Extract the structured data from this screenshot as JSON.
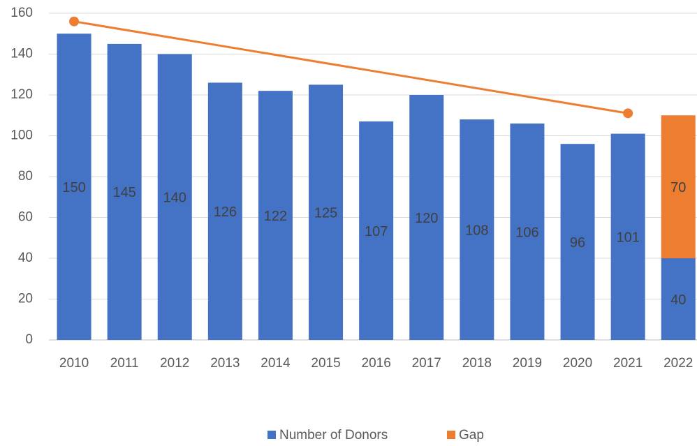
{
  "chart_data": {
    "type": "bar",
    "stacked": true,
    "categories": [
      "2010",
      "2011",
      "2012",
      "2013",
      "2014",
      "2015",
      "2016",
      "2017",
      "2018",
      "2019",
      "2020",
      "2021",
      "2022"
    ],
    "series": [
      {
        "name": "Number of Donors",
        "color": "#4472c4",
        "values": [
          150,
          145,
          140,
          126,
          122,
          125,
          107,
          120,
          108,
          106,
          96,
          101,
          40
        ]
      },
      {
        "name": "Gap",
        "color": "#ed7d31",
        "values": [
          null,
          null,
          null,
          null,
          null,
          null,
          null,
          null,
          null,
          null,
          null,
          null,
          70
        ]
      }
    ],
    "trendline": {
      "categories": [
        "2010",
        "2021"
      ],
      "values": [
        156,
        111
      ],
      "color": "#ed7d31"
    },
    "ylim": [
      0,
      160
    ],
    "yticks": [
      0,
      20,
      40,
      60,
      80,
      100,
      120,
      140,
      160
    ],
    "grid": true,
    "legend": "bottom"
  }
}
